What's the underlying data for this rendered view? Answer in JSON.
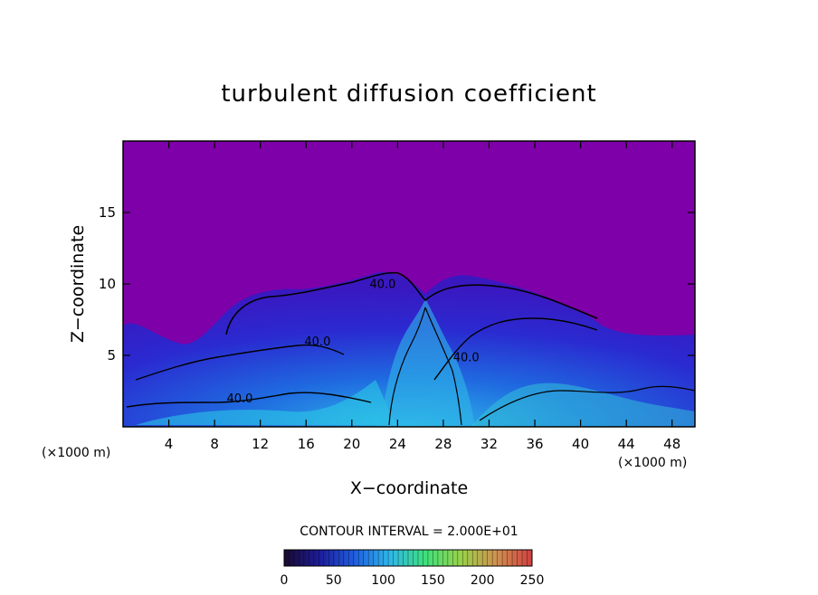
{
  "chart_data": {
    "type": "heatmap",
    "title": "turbulent diffusion coefficient",
    "xlabel": "X−coordinate",
    "ylabel": "Z−coordinate",
    "x_unit": "(×1000 m)",
    "y_unit": "(×1000 m)",
    "xlim": [
      0,
      50
    ],
    "ylim": [
      0,
      20
    ],
    "x_ticks": [
      4,
      8,
      12,
      16,
      20,
      24,
      28,
      32,
      36,
      40,
      44,
      48
    ],
    "x_tick_labels": [
      "4",
      "8",
      "12",
      "16",
      "20",
      "24",
      "28",
      "32",
      "36",
      "40",
      "44",
      "48"
    ],
    "y_ticks": [
      5,
      10,
      15
    ],
    "y_tick_labels": [
      "5",
      "10",
      "15"
    ],
    "contour_interval_text": "CONTOUR INTERVAL = 2.000E+01",
    "contour_labels": [
      {
        "text": "40.0",
        "x": 22.7,
        "y": 9.7
      },
      {
        "text": "40.0",
        "x": 17.0,
        "y": 5.7
      },
      {
        "text": "40.0",
        "x": 10.2,
        "y": 1.7
      },
      {
        "text": "40.0",
        "x": 30.0,
        "y": 4.6
      }
    ],
    "colorbar": {
      "min": 0,
      "max": 250,
      "ticks": [
        0,
        50,
        100,
        150,
        200,
        250
      ],
      "tick_labels": [
        "0",
        "50",
        "100",
        "150",
        "200",
        "250"
      ],
      "colors": [
        "#1a0a2e",
        "#1c1c9a",
        "#1f5fe0",
        "#2fb8e8",
        "#3fe07a",
        "#9ad14a",
        "#d09050",
        "#d04040"
      ]
    },
    "background_color": "#7e00a8",
    "grid": false,
    "legend": "none"
  }
}
